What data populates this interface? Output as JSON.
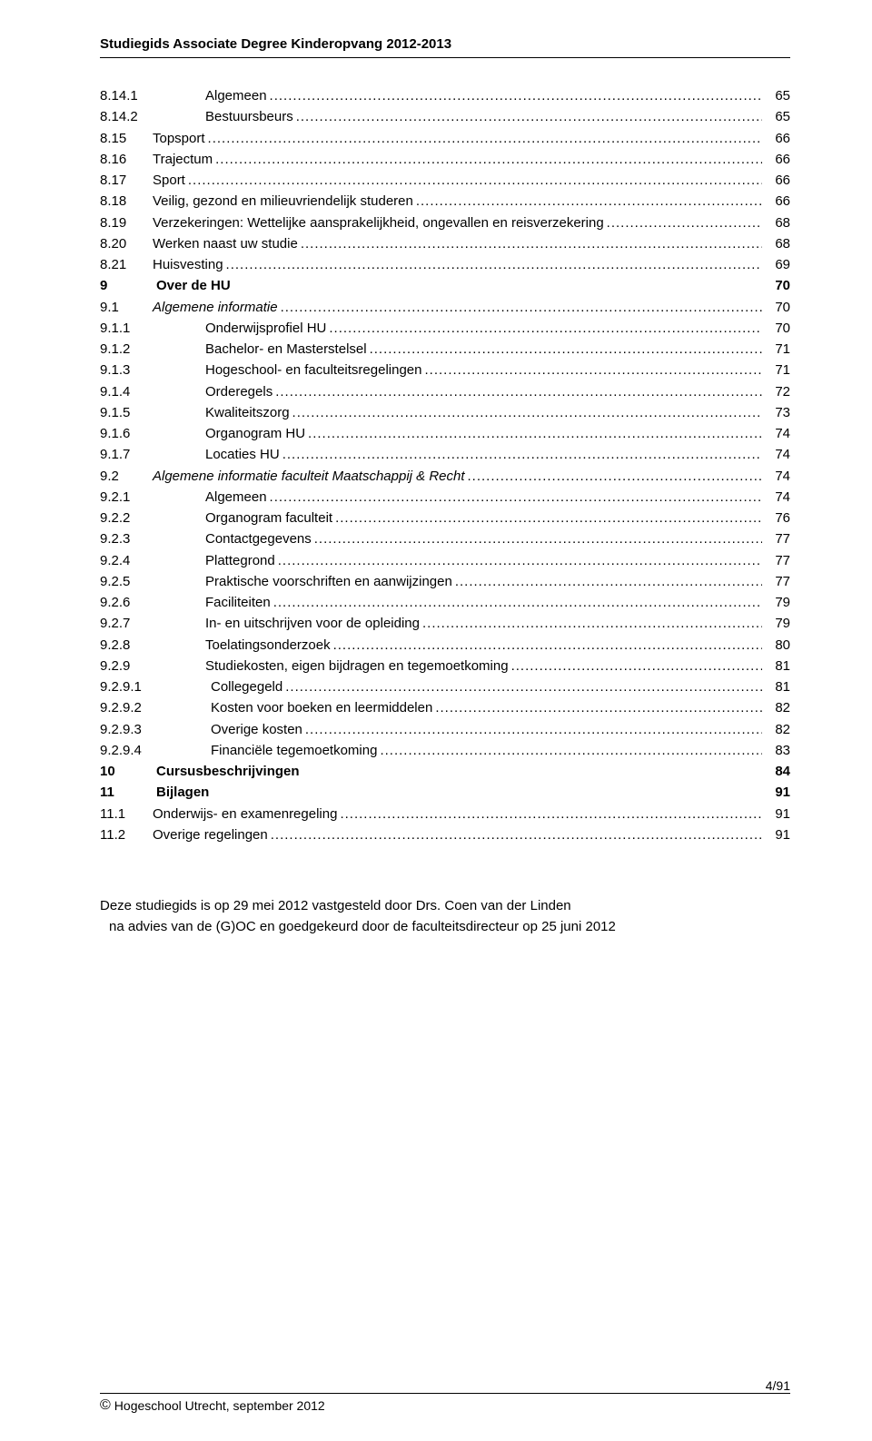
{
  "header": {
    "title": "Studiegids Associate Degree Kinderopvang 2012-2013"
  },
  "toc": [
    {
      "num": "8.14.1",
      "label": "Algemeen",
      "page": "65",
      "level": 2,
      "bold": false,
      "dots": true
    },
    {
      "num": "8.14.2",
      "label": "Bestuursbeurs",
      "page": "65",
      "level": 2,
      "bold": false,
      "dots": true
    },
    {
      "num": "8.15",
      "label": "Topsport",
      "page": "66",
      "level": 1,
      "bold": false,
      "dots": true
    },
    {
      "num": "8.16",
      "label": "Trajectum",
      "page": "66",
      "level": 1,
      "bold": false,
      "dots": true
    },
    {
      "num": "8.17",
      "label": "Sport",
      "page": "66",
      "level": 1,
      "bold": false,
      "dots": true
    },
    {
      "num": "8.18",
      "label": "Veilig, gezond en milieuvriendelijk studeren",
      "page": "66",
      "level": 1,
      "bold": false,
      "dots": true
    },
    {
      "num": "8.19",
      "label": "Verzekeringen: Wettelijke aansprakelijkheid, ongevallen en reisverzekering",
      "page": "68",
      "level": 1,
      "bold": false,
      "dots": true
    },
    {
      "num": "8.20",
      "label": "Werken naast uw studie",
      "page": "68",
      "level": 1,
      "bold": false,
      "dots": true
    },
    {
      "num": "8.21",
      "label": "Huisvesting",
      "page": "69",
      "level": 1,
      "bold": false,
      "dots": true
    },
    {
      "num": "9",
      "label": "Over de HU",
      "page": "70",
      "level": 0,
      "bold": true,
      "dots": false
    },
    {
      "num": "9.1",
      "label": "Algemene informatie",
      "page": "70",
      "level": 1,
      "bold": false,
      "dots": true,
      "italic": true
    },
    {
      "num": "9.1.1",
      "label": "Onderwijsprofiel HU",
      "page": "70",
      "level": 2,
      "bold": false,
      "dots": true
    },
    {
      "num": "9.1.2",
      "label": "Bachelor- en Masterstelsel",
      "page": "71",
      "level": 2,
      "bold": false,
      "dots": true
    },
    {
      "num": "9.1.3",
      "label": "Hogeschool- en faculteitsregelingen",
      "page": "71",
      "level": 2,
      "bold": false,
      "dots": true
    },
    {
      "num": "9.1.4",
      "label": "Orderegels",
      "page": "72",
      "level": 2,
      "bold": false,
      "dots": true
    },
    {
      "num": "9.1.5",
      "label": "Kwaliteitszorg",
      "page": "73",
      "level": 2,
      "bold": false,
      "dots": true
    },
    {
      "num": "9.1.6",
      "label": "Organogram HU",
      "page": "74",
      "level": 2,
      "bold": false,
      "dots": true
    },
    {
      "num": "9.1.7",
      "label": "Locaties HU",
      "page": "74",
      "level": 2,
      "bold": false,
      "dots": true
    },
    {
      "num": "9.2",
      "label": "Algemene informatie faculteit Maatschappij & Recht",
      "page": "74",
      "level": 1,
      "bold": false,
      "dots": true,
      "italic": true
    },
    {
      "num": "9.2.1",
      "label": "Algemeen",
      "page": "74",
      "level": 2,
      "bold": false,
      "dots": true
    },
    {
      "num": "9.2.2",
      "label": "Organogram faculteit",
      "page": "76",
      "level": 2,
      "bold": false,
      "dots": true
    },
    {
      "num": "9.2.3",
      "label": "Contactgegevens",
      "page": "77",
      "level": 2,
      "bold": false,
      "dots": true
    },
    {
      "num": "9.2.4",
      "label": "Plattegrond",
      "page": "77",
      "level": 2,
      "bold": false,
      "dots": true
    },
    {
      "num": "9.2.5",
      "label": "Praktische voorschriften en aanwijzingen",
      "page": "77",
      "level": 2,
      "bold": false,
      "dots": true
    },
    {
      "num": "9.2.6",
      "label": "Faciliteiten",
      "page": "79",
      "level": 2,
      "bold": false,
      "dots": true
    },
    {
      "num": "9.2.7",
      "label": "In- en uitschrijven voor de opleiding",
      "page": "79",
      "level": 2,
      "bold": false,
      "dots": true
    },
    {
      "num": "9.2.8",
      "label": "Toelatingsonderzoek",
      "page": "80",
      "level": 2,
      "bold": false,
      "dots": true
    },
    {
      "num": "9.2.9",
      "label": "Studiekosten, eigen bijdragen en tegemoetkoming",
      "page": "81",
      "level": 2,
      "bold": false,
      "dots": true
    },
    {
      "num": "9.2.9.1",
      "label": "Collegegeld",
      "page": "81",
      "level": 3,
      "bold": false,
      "dots": true
    },
    {
      "num": "9.2.9.2",
      "label": "Kosten voor boeken en leermiddelen",
      "page": "82",
      "level": 3,
      "bold": false,
      "dots": true
    },
    {
      "num": "9.2.9.3",
      "label": "Overige kosten",
      "page": "82",
      "level": 3,
      "bold": false,
      "dots": true
    },
    {
      "num": "9.2.9.4",
      "label": "Financiële tegemoetkoming",
      "page": "83",
      "level": 3,
      "bold": false,
      "dots": true
    },
    {
      "num": "10",
      "label": "Cursusbeschrijvingen",
      "page": "84",
      "level": 0,
      "bold": true,
      "dots": false
    },
    {
      "num": "11",
      "label": "Bijlagen",
      "page": "91",
      "level": 0,
      "bold": true,
      "dots": false
    },
    {
      "num": "11.1",
      "label": "Onderwijs- en examenregeling",
      "page": "91",
      "level": 1,
      "bold": false,
      "dots": true
    },
    {
      "num": "11.2",
      "label": "Overige regelingen",
      "page": "91",
      "level": 1,
      "bold": false,
      "dots": true
    }
  ],
  "note": {
    "line1": "Deze studiegids is op 29 mei 2012 vastgesteld door Drs. Coen van der Linden",
    "line2": "na advies van de (G)OC en goedgekeurd door de faculteitsdirecteur op 25 juni 2012"
  },
  "footer": {
    "left": "Hogeschool Utrecht, september 2012",
    "right": "4/91",
    "copyright": "©"
  },
  "layout": {
    "num_min_width": {
      "0": 50,
      "1": 46,
      "2": 80,
      "3": 90
    },
    "label_padding_left": {
      "0": 0,
      "1": 0,
      "2": 24,
      "3": 20
    }
  }
}
